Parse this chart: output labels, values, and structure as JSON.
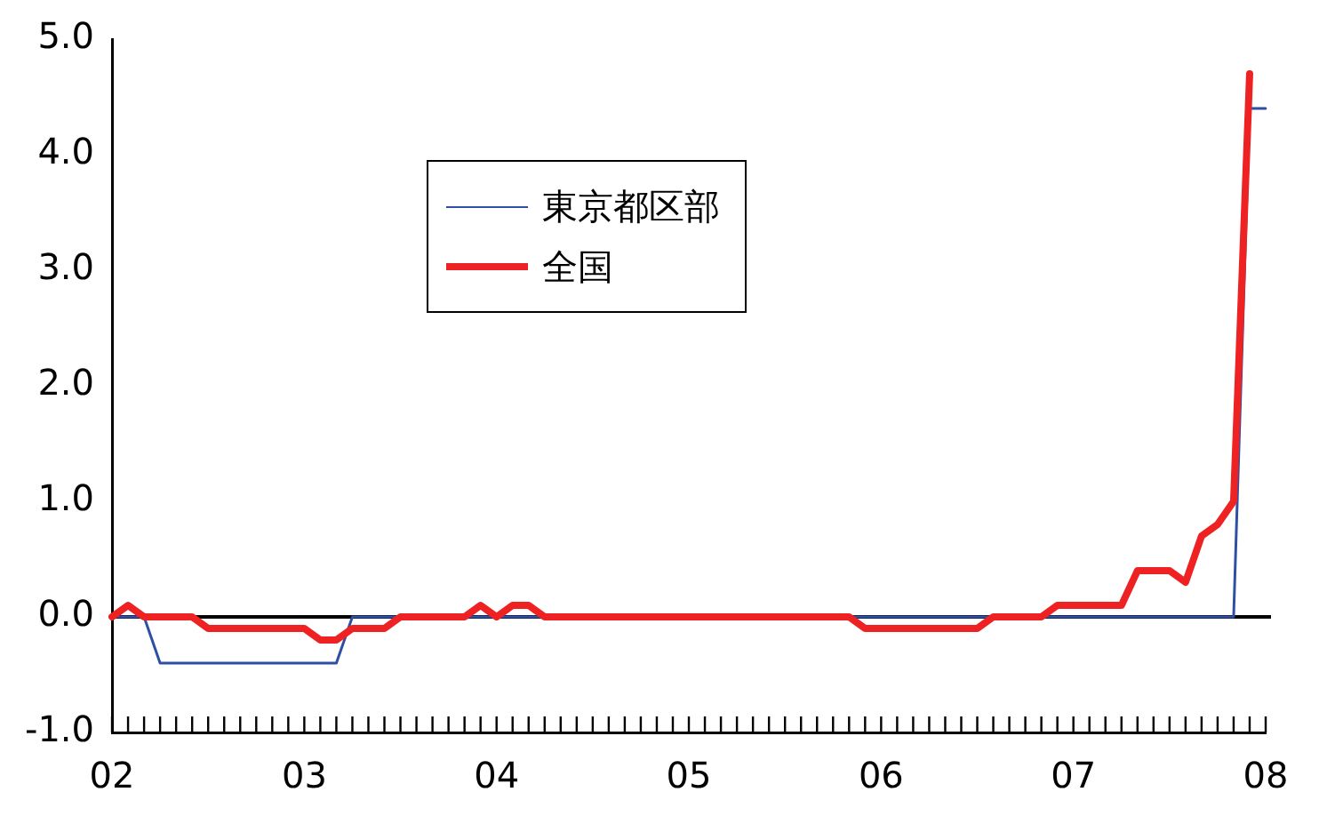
{
  "chart_data": {
    "type": "line",
    "categories": [
      "02",
      null,
      null,
      null,
      null,
      null,
      null,
      null,
      null,
      null,
      null,
      null,
      "03",
      null,
      null,
      null,
      null,
      null,
      null,
      null,
      null,
      null,
      null,
      null,
      "04",
      null,
      null,
      null,
      null,
      null,
      null,
      null,
      null,
      null,
      null,
      null,
      "05",
      null,
      null,
      null,
      null,
      null,
      null,
      null,
      null,
      null,
      null,
      null,
      "06",
      null,
      null,
      null,
      null,
      null,
      null,
      null,
      null,
      null,
      null,
      null,
      "07",
      null,
      null,
      null,
      null,
      null,
      null,
      null,
      null,
      null,
      null,
      null,
      "08"
    ],
    "series": [
      {
        "name": "東京都区部",
        "color": "#2e4fa3",
        "values": [
          0,
          0,
          0,
          -0.4,
          -0.4,
          -0.4,
          -0.4,
          -0.4,
          -0.4,
          -0.4,
          -0.4,
          -0.4,
          -0.4,
          -0.4,
          -0.4,
          0,
          0,
          0,
          0,
          0,
          0,
          0,
          0,
          0,
          0,
          0,
          0,
          0,
          0,
          0,
          0,
          0,
          0,
          0,
          0,
          0,
          0,
          0,
          0,
          0,
          0,
          0,
          0,
          0,
          0,
          0,
          0,
          0,
          0,
          0,
          0,
          0,
          0,
          0,
          0,
          0,
          0,
          0,
          0,
          0,
          0,
          0,
          0,
          0,
          0,
          0,
          0,
          0,
          0,
          0,
          0,
          4.4,
          4.4
        ]
      },
      {
        "name": "全国",
        "color": "#ee2222",
        "values": [
          0,
          0.1,
          0,
          0,
          0,
          0,
          -0.1,
          -0.1,
          -0.1,
          -0.1,
          -0.1,
          -0.1,
          -0.1,
          -0.2,
          -0.2,
          -0.1,
          -0.1,
          -0.1,
          0,
          0,
          0,
          0,
          0,
          0.1,
          0,
          0.1,
          0.1,
          0,
          0,
          0,
          0,
          0,
          0,
          0,
          0,
          0,
          0,
          0,
          0,
          0,
          0,
          0,
          0,
          0,
          0,
          0,
          0,
          -0.1,
          -0.1,
          -0.1,
          -0.1,
          -0.1,
          -0.1,
          -0.1,
          -0.1,
          0,
          0,
          0,
          0,
          0.1,
          0.1,
          0.1,
          0.1,
          0.1,
          0.4,
          0.4,
          0.4,
          0.3,
          0.7,
          0.8,
          1.0,
          4.7,
          null
        ]
      }
    ],
    "ylim": [
      -1,
      5
    ],
    "yticks": [
      {
        "value": -1,
        "label": "-1.0"
      },
      {
        "value": 0,
        "label": "0.0"
      },
      {
        "value": 1,
        "label": "1.0"
      },
      {
        "value": 2,
        "label": "2.0"
      },
      {
        "value": 3,
        "label": "3.0"
      },
      {
        "value": 4,
        "label": "4.0"
      },
      {
        "value": 5,
        "label": "5.0"
      }
    ],
    "ref_lines": [
      {
        "axis": "y",
        "value": 0,
        "color": "#000000"
      }
    ],
    "grid": false,
    "legend": "top left",
    "marker": "none",
    "line_style": "solid"
  }
}
